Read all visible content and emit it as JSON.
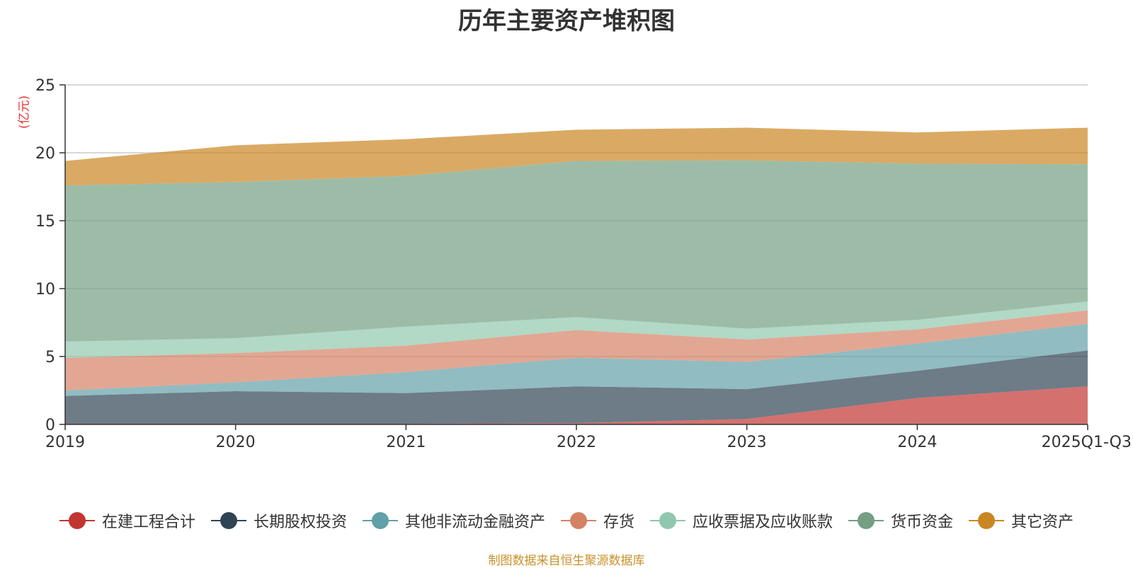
{
  "chart_data": {
    "type": "area",
    "stacked": true,
    "title": "历年主要资产堆积图",
    "ylabel": "(亿元)",
    "xlabel": "",
    "categories": [
      "2019",
      "2020",
      "2021",
      "2022",
      "2023",
      "2024",
      "2025Q1-Q3"
    ],
    "ylim": [
      0,
      25
    ],
    "yticks": [
      0,
      5,
      10,
      15,
      20,
      25
    ],
    "grid": true,
    "legend_position": "bottom",
    "series": [
      {
        "name": "在建工程合计",
        "color": "#c23531",
        "values": [
          0.05,
          0.05,
          0.05,
          0.1,
          0.4,
          1.95,
          2.8
        ]
      },
      {
        "name": "长期股权投资",
        "color": "#2f4554",
        "values": [
          2.05,
          2.4,
          2.25,
          2.7,
          2.2,
          2.0,
          2.65
        ]
      },
      {
        "name": "其他非流动金融资产",
        "color": "#61a0a8",
        "values": [
          0.4,
          0.65,
          1.55,
          2.1,
          2.0,
          2.0,
          1.95
        ]
      },
      {
        "name": "存货",
        "color": "#d48265",
        "values": [
          2.4,
          2.15,
          1.95,
          2.05,
          1.65,
          1.05,
          1.0
        ]
      },
      {
        "name": "应收票据及应收账款",
        "color": "#91c7ae",
        "values": [
          1.2,
          1.1,
          1.4,
          0.95,
          0.8,
          0.7,
          0.65
        ]
      },
      {
        "name": "货币资金",
        "color": "#749f83",
        "values": [
          11.5,
          11.5,
          11.1,
          11.5,
          12.4,
          11.5,
          10.1
        ]
      },
      {
        "name": "其它资产",
        "color": "#ca8622",
        "values": [
          1.8,
          2.7,
          2.7,
          2.3,
          2.4,
          2.3,
          2.7
        ]
      }
    ],
    "source_note": "制图数据来自恒生聚源数据库"
  }
}
